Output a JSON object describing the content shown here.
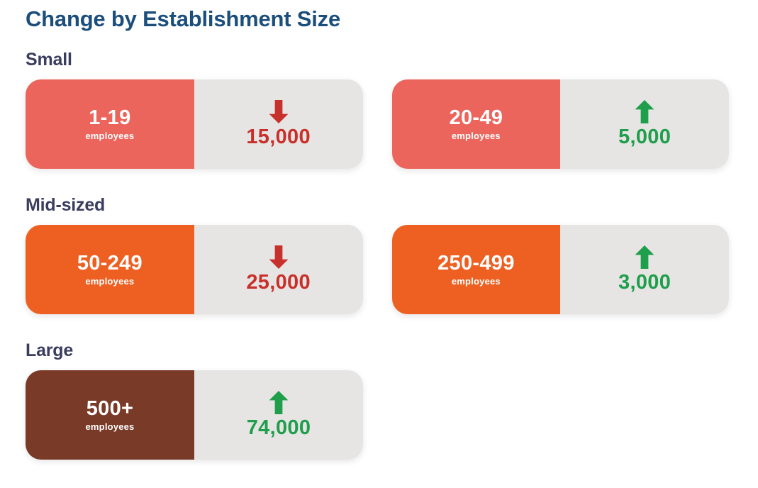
{
  "title": "Change by Establishment Size",
  "employees_label": "employees",
  "colors": {
    "title_blue": "#1C4E7C",
    "section_navy": "#3A3D5E",
    "small_salmon": "#EC655C",
    "midsized_orange": "#EE6022",
    "large_brown": "#793A28",
    "value_panel_gray": "#E6E5E3",
    "decrease_red": "#C8302B",
    "increase_green": "#1F9E4C",
    "block_text_white": "#FFFFFF"
  },
  "icons": {
    "increase": "increase-arrow-icon",
    "decrease": "decrease-arrow-icon"
  },
  "chart_data": {
    "type": "table",
    "title": "Change by Establishment Size",
    "groups": [
      {
        "label": "Small",
        "items": [
          {
            "size_range": "1-19",
            "unit": "employees",
            "direction": "decrease",
            "change": -15000,
            "change_label": "15,000",
            "block_color": "#EC655C"
          },
          {
            "size_range": "20-49",
            "unit": "employees",
            "direction": "increase",
            "change": 5000,
            "change_label": "5,000",
            "block_color": "#EC655C"
          }
        ]
      },
      {
        "label": "Mid-sized",
        "items": [
          {
            "size_range": "50-249",
            "unit": "employees",
            "direction": "decrease",
            "change": -25000,
            "change_label": "25,000",
            "block_color": "#EE6022"
          },
          {
            "size_range": "250-499",
            "unit": "employees",
            "direction": "increase",
            "change": 3000,
            "change_label": "3,000",
            "block_color": "#EE6022"
          }
        ]
      },
      {
        "label": "Large",
        "items": [
          {
            "size_range": "500+",
            "unit": "employees",
            "direction": "increase",
            "change": 74000,
            "change_label": "74,000",
            "block_color": "#793A28"
          }
        ]
      }
    ]
  }
}
